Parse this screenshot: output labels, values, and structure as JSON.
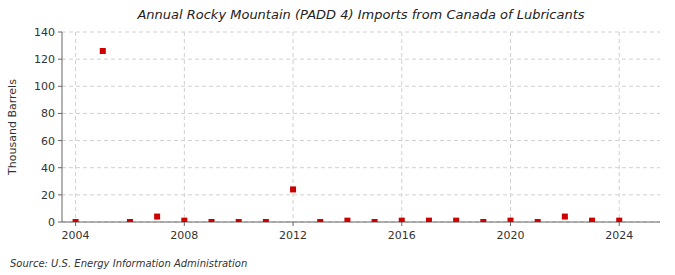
{
  "chart_data": {
    "type": "scatter",
    "title": "Annual Rocky Mountain (PADD 4) Imports from Canada of Lubricants",
    "ylabel": "Thousand Barrels",
    "annotations": [
      "Source: U.S. Energy Information Administration"
    ],
    "x": [
      2004,
      2005,
      2006,
      2007,
      2008,
      2009,
      2010,
      2011,
      2012,
      2013,
      2014,
      2015,
      2016,
      2017,
      2018,
      2019,
      2020,
      2021,
      2022,
      2023,
      2024
    ],
    "values": [
      0,
      126,
      0,
      4,
      1,
      0,
      0,
      0,
      24,
      0,
      1,
      0,
      1,
      1,
      1,
      0,
      1,
      0,
      4,
      1,
      1
    ],
    "color": "#cc0000",
    "marker": "square",
    "xlim": [
      2003.5,
      2025.5
    ],
    "ylim": [
      0,
      140
    ],
    "xticks": [
      2004,
      2008,
      2012,
      2016,
      2020,
      2024
    ],
    "yticks": [
      0,
      20,
      40,
      60,
      80,
      100,
      120,
      140
    ],
    "grid": true
  }
}
